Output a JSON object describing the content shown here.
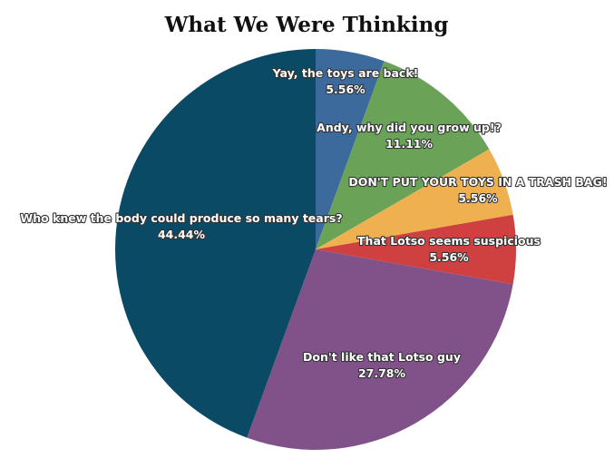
{
  "chart_data": {
    "type": "pie",
    "title": "What We Were Thinking",
    "slices": [
      {
        "label": "Yay, the toys are back!",
        "value": 5.56,
        "value_label": "5.56%",
        "color": "#3d6a9c"
      },
      {
        "label": "Andy, why did you grow up!?",
        "value": 11.11,
        "value_label": "11.11%",
        "color": "#6aa357"
      },
      {
        "label": "DON'T PUT YOUR TOYS IN A TRASH BAG!",
        "value": 5.56,
        "value_label": "5.56%",
        "color": "#efb14f"
      },
      {
        "label": "That Lotso seems suspicious",
        "value": 5.56,
        "value_label": "5.56%",
        "color": "#cf4140"
      },
      {
        "label": "Don't like that Lotso guy",
        "value": 27.78,
        "value_label": "27.78%",
        "color": "#81528a"
      },
      {
        "label": "Who knew the body could produce so many tears?",
        "value": 44.44,
        "value_label": "44.44%",
        "color": "#0b4a64"
      }
    ]
  }
}
